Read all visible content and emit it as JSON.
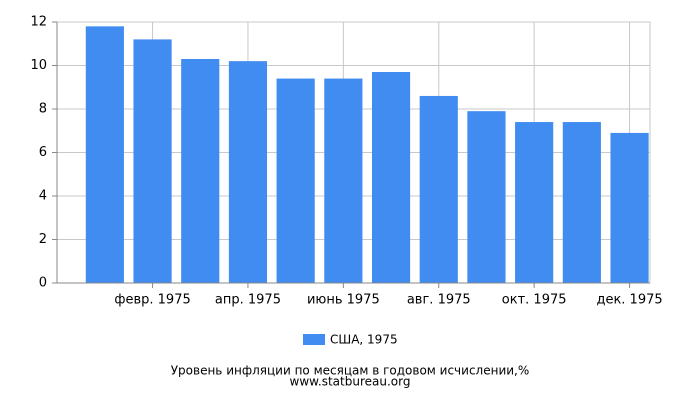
{
  "chart_data": {
    "type": "bar",
    "title": "Уровень инфляции по месяцам в годовом исчислении,%",
    "subtitle": "www.statbureau.org",
    "categories": [
      null,
      "февр. 1975",
      null,
      "апр. 1975",
      null,
      "июнь 1975",
      null,
      "авг. 1975",
      null,
      "окт. 1975",
      null,
      "дек. 1975"
    ],
    "series": [
      {
        "name": "США, 1975",
        "color": "#418cf0",
        "values": [
          11.8,
          11.2,
          10.3,
          10.2,
          9.4,
          9.4,
          9.7,
          8.6,
          7.9,
          7.4,
          7.4,
          6.9
        ]
      }
    ],
    "ylim": [
      0,
      12
    ],
    "yticks": [
      0,
      2,
      4,
      6,
      8,
      10,
      12
    ],
    "grid": true
  }
}
